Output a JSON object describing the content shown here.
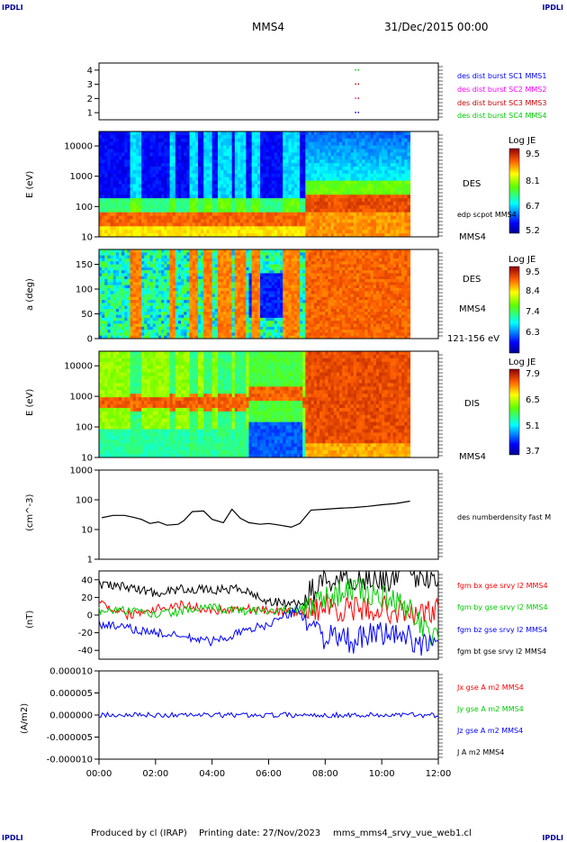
{
  "header": {
    "corner_left_top": "IPDLI",
    "corner_right_top": "IPDLI",
    "corner_left_bottom": "IPDLI",
    "corner_right_bottom": "IPDLI",
    "spacecraft": "MMS4",
    "date": "31/Dec/2015 00:00"
  },
  "footer": {
    "produced_by": "Produced by cl (IRAP)",
    "printing_date": "Printing date: 27/Nov/2023",
    "file": "mms_mms4_srvy_vue_web1.cl"
  },
  "colors": {
    "black": "#000000",
    "red": "#ff0000",
    "green": "#00cc00",
    "blue": "#0000ff",
    "magenta": "#ff00ff",
    "crimson": "#cc0000"
  },
  "chart_data": [
    {
      "type": "scatter",
      "panel": "burst",
      "yticks": [
        "4",
        "3",
        "2",
        "1"
      ],
      "ylim": [
        0.5,
        4.5
      ],
      "legend": [
        {
          "label": "des dist burst SC1 MMS1",
          "color": "#0000ff"
        },
        {
          "label": "des dist burst SC2 MMS2",
          "color": "#ff00ff"
        },
        {
          "label": "des dist burst SC3 MMS3",
          "color": "#cc0000"
        },
        {
          "label": "des dist burst SC4 MMS4",
          "color": "#00cc00"
        }
      ],
      "marks": [
        {
          "x": 9.05,
          "y": 4,
          "color": "#00cc00"
        },
        {
          "x": 9.15,
          "y": 4,
          "color": "#00cc00"
        },
        {
          "x": 9.05,
          "y": 3,
          "color": "#cc0000"
        },
        {
          "x": 9.15,
          "y": 3,
          "color": "#cc0000"
        },
        {
          "x": 9.05,
          "y": 2,
          "color": "#ff00ff"
        },
        {
          "x": 9.15,
          "y": 2,
          "color": "#cc0000"
        },
        {
          "x": 9.05,
          "y": 1,
          "color": "#0000ff"
        },
        {
          "x": 9.15,
          "y": 1,
          "color": "#0000ff"
        }
      ]
    },
    {
      "type": "heatmap",
      "panel": "des_energy",
      "ylabel": "E (eV)",
      "yscale": "log",
      "yticks": [
        "10000",
        "1000",
        "100",
        "10"
      ],
      "ylim": [
        10,
        30000
      ],
      "instrument": "DES",
      "extra_label": "edp scpot MMS4",
      "spacecraft_label": "MMS4",
      "colorbar": {
        "title": "Log JE",
        "ticks": [
          "9.5",
          "8.1",
          "6.7",
          "5.2"
        ]
      }
    },
    {
      "type": "heatmap",
      "panel": "des_pitch",
      "ylabel": "a (deg)",
      "yticks": [
        "150",
        "100",
        "50",
        "0"
      ],
      "ylim": [
        0,
        180
      ],
      "instrument": "DES",
      "spacecraft_label": "MMS4",
      "energy_range": "121-156 eV",
      "colorbar": {
        "title": "Log JE",
        "ticks": [
          "9.5",
          "8.4",
          "7.4",
          "6.3"
        ]
      }
    },
    {
      "type": "heatmap",
      "panel": "dis_energy",
      "ylabel": "E (eV)",
      "yscale": "log",
      "yticks": [
        "10000",
        "1000",
        "100",
        "10"
      ],
      "ylim": [
        10,
        30000
      ],
      "instrument": "DIS",
      "spacecraft_label": "MMS4",
      "colorbar": {
        "title": "Log JE",
        "ticks": [
          "7.9",
          "6.5",
          "5.1",
          "3.7"
        ]
      }
    },
    {
      "type": "line",
      "panel": "density",
      "ylabel": "(cm^-3)",
      "yscale": "log",
      "yticks": [
        "1000",
        "100",
        "10",
        "1"
      ],
      "ylim": [
        1,
        1000
      ],
      "legend": [
        {
          "label": "des numberdensity fast M",
          "color": "#000000"
        }
      ],
      "series": [
        {
          "color": "#000000",
          "x": [
            0.1,
            0.5,
            0.9,
            1.2,
            1.5,
            1.8,
            2.1,
            2.4,
            2.8,
            3.0,
            3.3,
            3.7,
            4.0,
            4.4,
            4.7,
            5.0,
            5.3,
            5.7,
            6.0,
            6.4,
            6.8,
            7.1,
            7.5,
            8.0,
            8.5,
            9.0,
            9.5,
            10.0,
            10.5,
            11.0
          ],
          "y": [
            25,
            30,
            30,
            26,
            22,
            16,
            18,
            14,
            15,
            20,
            40,
            42,
            22,
            17,
            48,
            24,
            17,
            15,
            16,
            14,
            12,
            16,
            45,
            48,
            52,
            55,
            60,
            68,
            75,
            90
          ]
        }
      ]
    },
    {
      "type": "line",
      "panel": "magnetic_field",
      "ylabel": "(nT)",
      "yticks": [
        "40",
        "20",
        "0",
        "-20",
        "-40"
      ],
      "ylim": [
        -50,
        50
      ],
      "legend": [
        {
          "label": "fgm bx gse srvy l2 MMS4",
          "color": "#ff0000"
        },
        {
          "label": "fgm by gse srvy l2 MMS4",
          "color": "#00cc00"
        },
        {
          "label": "fgm bz gse srvy l2 MMS4",
          "color": "#0000ff"
        },
        {
          "label": "fgm bt gse srvy l2 MMS4",
          "color": "#000000"
        }
      ],
      "series": [
        {
          "name": "bt",
          "color": "#000000",
          "x": [
            0,
            1,
            2,
            3,
            4,
            5,
            6,
            7,
            8,
            9,
            10,
            11,
            12
          ],
          "y": [
            35,
            32,
            25,
            30,
            28,
            30,
            15,
            12,
            40,
            42,
            40,
            45,
            45
          ]
        },
        {
          "name": "bx",
          "color": "#ff0000",
          "x": [
            0,
            1,
            2,
            3,
            4,
            5,
            6,
            7,
            8,
            9,
            10,
            11,
            12
          ],
          "y": [
            15,
            0,
            8,
            12,
            5,
            8,
            5,
            3,
            10,
            5,
            8,
            0,
            5
          ]
        },
        {
          "name": "by",
          "color": "#00cc00",
          "x": [
            0,
            1,
            2,
            3,
            4,
            5,
            6,
            7,
            8,
            9,
            10,
            11,
            12
          ],
          "y": [
            5,
            5,
            0,
            5,
            8,
            5,
            5,
            5,
            20,
            30,
            20,
            5,
            -30
          ]
        },
        {
          "name": "bz",
          "color": "#0000ff",
          "x": [
            0,
            1,
            2,
            3,
            4,
            5,
            6,
            7,
            8,
            9,
            10,
            11,
            12
          ],
          "y": [
            -10,
            -15,
            -20,
            -25,
            -30,
            -20,
            -10,
            5,
            -25,
            -30,
            -20,
            -25,
            -40
          ]
        }
      ]
    },
    {
      "type": "line",
      "panel": "current_density",
      "ylabel": "(A/m2)",
      "yticks": [
        "0.000010",
        "0.000005",
        "0.000000",
        "-0.000005",
        "-0.000010"
      ],
      "ylim": [
        -1e-05,
        1e-05
      ],
      "legend": [
        {
          "label": "Jx gse A m2 MMS4",
          "color": "#ff0000"
        },
        {
          "label": "Jy gse A m2 MMS4",
          "color": "#00cc00"
        },
        {
          "label": "Jz gse A m2 MMS4",
          "color": "#0000ff"
        },
        {
          "label": "J A m2 MMS4",
          "color": "#000000"
        }
      ],
      "series": [
        {
          "name": "Jz",
          "color": "#0000ff",
          "x": [
            0,
            1,
            1.5,
            2,
            3,
            3.5,
            4,
            5,
            6,
            7,
            8,
            9,
            10,
            11,
            12
          ],
          "y": [
            0,
            0,
            8e-07,
            0,
            6e-07,
            -6e-07,
            0,
            0,
            0,
            0,
            0,
            0,
            0,
            0,
            0
          ]
        }
      ]
    }
  ],
  "xaxis": {
    "ticks": [
      "00:00",
      "02:00",
      "04:00",
      "06:00",
      "08:00",
      "10:00",
      "12:00"
    ],
    "range_hours": [
      0,
      12
    ],
    "data_end_hours": 11.0
  }
}
